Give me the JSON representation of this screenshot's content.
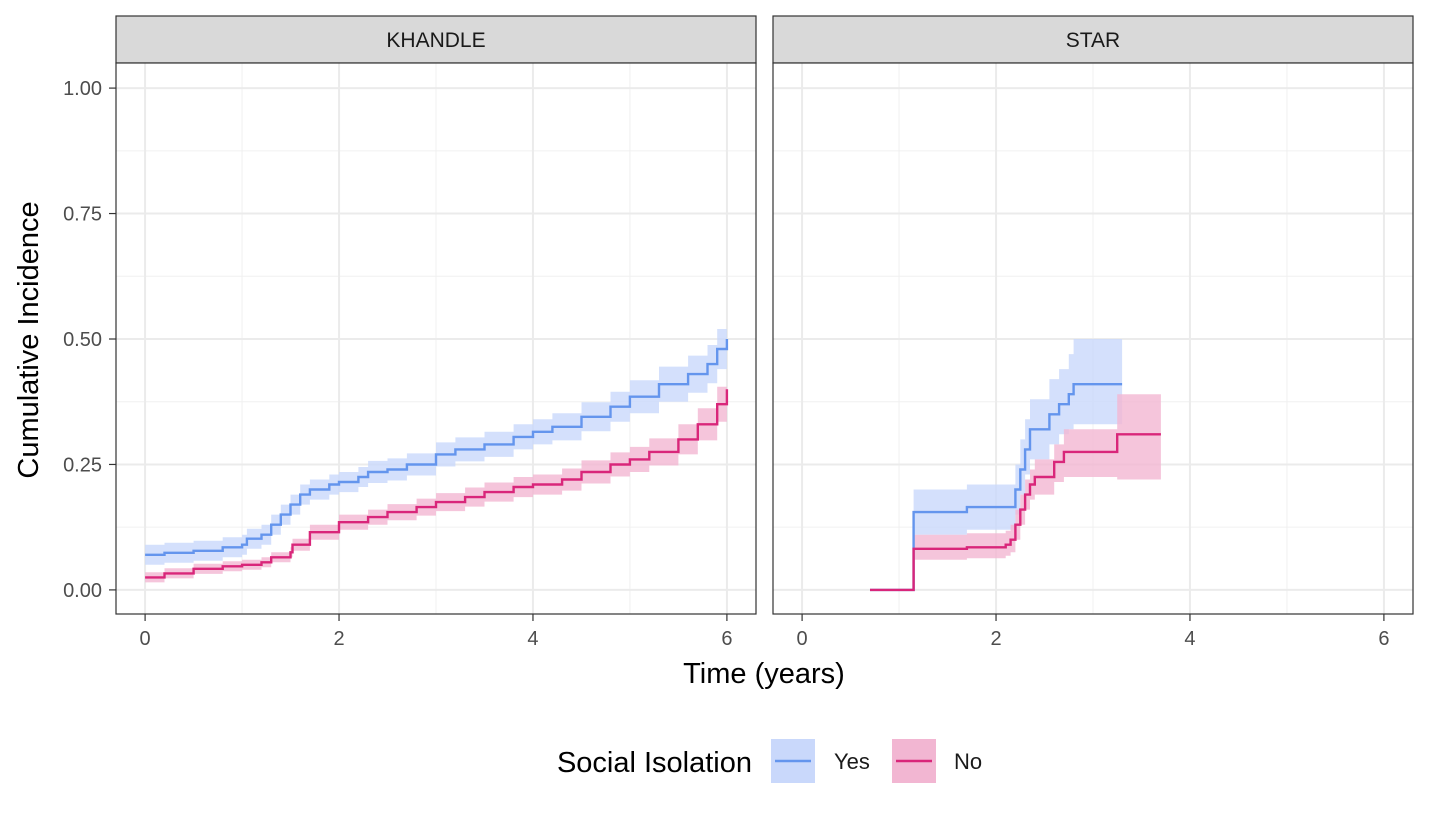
{
  "chart_data": {
    "type": "line",
    "xlabel": "Time (years)",
    "ylabel": "Cumulative Incidence",
    "xlim": [
      -0.3,
      6.3
    ],
    "ylim": [
      -0.048,
      1.05
    ],
    "x_ticks": [
      0,
      2,
      4,
      6
    ],
    "x_tick_labels": [
      "0",
      "2",
      "4",
      "6"
    ],
    "y_ticks": [
      0,
      0.25,
      0.5,
      0.75,
      1.0
    ],
    "y_tick_labels": [
      "0.00",
      "0.25",
      "0.50",
      "0.75",
      "1.00"
    ],
    "grid": true,
    "legend": {
      "title": "Social Isolation",
      "position": "bottom",
      "entries": [
        {
          "label": "Yes",
          "line_color": "#6495ED",
          "fill_color": "#c9d8fb"
        },
        {
          "label": "No",
          "line_color": "#D9267A",
          "fill_color": "#f2b6d2"
        }
      ]
    },
    "panels": [
      {
        "title": "KHANDLE",
        "series": [
          {
            "name": "Yes",
            "color": "#6495ED",
            "fill": "#c9d8fb",
            "x": [
              0,
              0.2,
              0.5,
              0.8,
              1.0,
              1.05,
              1.2,
              1.3,
              1.4,
              1.5,
              1.6,
              1.7,
              1.9,
              2.0,
              2.2,
              2.3,
              2.5,
              2.7,
              3.0,
              3.2,
              3.5,
              3.8,
              4.0,
              4.2,
              4.5,
              4.8,
              5.0,
              5.3,
              5.6,
              5.8,
              5.9,
              6.0
            ],
            "y": [
              0.07,
              0.074,
              0.078,
              0.085,
              0.09,
              0.102,
              0.11,
              0.13,
              0.15,
              0.17,
              0.19,
              0.2,
              0.21,
              0.215,
              0.225,
              0.235,
              0.24,
              0.25,
              0.27,
              0.28,
              0.29,
              0.305,
              0.315,
              0.325,
              0.345,
              0.365,
              0.385,
              0.41,
              0.43,
              0.45,
              0.48,
              0.5
            ],
            "lower": [
              0.05,
              0.054,
              0.058,
              0.065,
              0.07,
              0.082,
              0.09,
              0.11,
              0.13,
              0.15,
              0.17,
              0.18,
              0.19,
              0.195,
              0.205,
              0.213,
              0.218,
              0.228,
              0.246,
              0.256,
              0.265,
              0.28,
              0.29,
              0.298,
              0.316,
              0.335,
              0.352,
              0.375,
              0.393,
              0.412,
              0.44,
              0.455
            ],
            "upper": [
              0.09,
              0.094,
              0.098,
              0.105,
              0.11,
              0.122,
              0.13,
              0.15,
              0.17,
              0.19,
              0.21,
              0.22,
              0.23,
              0.235,
              0.245,
              0.257,
              0.262,
              0.272,
              0.294,
              0.304,
              0.315,
              0.33,
              0.34,
              0.352,
              0.374,
              0.395,
              0.418,
              0.445,
              0.467,
              0.488,
              0.52,
              0.555
            ]
          },
          {
            "name": "No",
            "color": "#D9267A",
            "fill": "#f2b6d2",
            "x": [
              0,
              0.2,
              0.5,
              0.8,
              1.0,
              1.2,
              1.3,
              1.5,
              1.52,
              1.7,
              2.0,
              2.3,
              2.5,
              2.8,
              3.0,
              3.3,
              3.5,
              3.8,
              4.0,
              4.3,
              4.5,
              4.8,
              5.0,
              5.2,
              5.5,
              5.7,
              5.9,
              6.0
            ],
            "y": [
              0.025,
              0.033,
              0.042,
              0.047,
              0.05,
              0.055,
              0.065,
              0.075,
              0.09,
              0.115,
              0.135,
              0.145,
              0.155,
              0.165,
              0.175,
              0.185,
              0.195,
              0.205,
              0.21,
              0.22,
              0.235,
              0.25,
              0.26,
              0.275,
              0.3,
              0.33,
              0.37,
              0.4
            ],
            "lower": [
              0.015,
              0.023,
              0.032,
              0.037,
              0.04,
              0.045,
              0.055,
              0.065,
              0.078,
              0.1,
              0.12,
              0.13,
              0.139,
              0.148,
              0.157,
              0.166,
              0.176,
              0.185,
              0.19,
              0.198,
              0.212,
              0.226,
              0.235,
              0.248,
              0.27,
              0.298,
              0.335,
              0.36
            ],
            "upper": [
              0.035,
              0.043,
              0.052,
              0.057,
              0.06,
              0.065,
              0.075,
              0.085,
              0.102,
              0.13,
              0.15,
              0.16,
              0.171,
              0.182,
              0.193,
              0.204,
              0.214,
              0.225,
              0.23,
              0.242,
              0.258,
              0.274,
              0.285,
              0.302,
              0.33,
              0.362,
              0.405,
              0.44
            ]
          }
        ]
      },
      {
        "title": "STAR",
        "series": [
          {
            "name": "Yes",
            "color": "#6495ED",
            "fill": "#c9d8fb",
            "x": [
              0.7,
              1.15,
              1.15,
              1.5,
              1.7,
              2.15,
              2.2,
              2.25,
              2.3,
              2.35,
              2.45,
              2.55,
              2.65,
              2.75,
              2.8,
              3.0,
              3.3
            ],
            "y": [
              0.0,
              0.0,
              0.155,
              0.155,
              0.165,
              0.165,
              0.2,
              0.24,
              0.28,
              0.32,
              0.32,
              0.35,
              0.37,
              0.39,
              0.41,
              0.41,
              0.41
            ],
            "lower": [
              0.0,
              0.0,
              0.11,
              0.11,
              0.12,
              0.12,
              0.15,
              0.19,
              0.23,
              0.26,
              0.26,
              0.29,
              0.31,
              0.32,
              0.33,
              0.33,
              0.33
            ],
            "upper": [
              0.0,
              0.0,
              0.2,
              0.2,
              0.21,
              0.21,
              0.25,
              0.3,
              0.34,
              0.38,
              0.38,
              0.42,
              0.44,
              0.47,
              0.5,
              0.5,
              0.5
            ]
          },
          {
            "name": "No",
            "color": "#D9267A",
            "fill": "#f2b6d2",
            "x": [
              0.7,
              1.15,
              1.15,
              1.5,
              1.7,
              2.1,
              2.15,
              2.2,
              2.25,
              2.3,
              2.35,
              2.4,
              2.5,
              2.6,
              2.7,
              3.0,
              3.25,
              3.25,
              3.7
            ],
            "y": [
              0.0,
              0.0,
              0.082,
              0.082,
              0.085,
              0.09,
              0.1,
              0.13,
              0.16,
              0.19,
              0.21,
              0.225,
              0.225,
              0.255,
              0.275,
              0.275,
              0.275,
              0.31,
              0.31
            ],
            "lower": [
              0.0,
              0.0,
              0.06,
              0.06,
              0.063,
              0.068,
              0.075,
              0.1,
              0.13,
              0.16,
              0.18,
              0.19,
              0.19,
              0.215,
              0.225,
              0.225,
              0.225,
              0.22,
              0.22
            ],
            "upper": [
              0.0,
              0.0,
              0.11,
              0.11,
              0.113,
              0.118,
              0.13,
              0.16,
              0.19,
              0.22,
              0.24,
              0.26,
              0.26,
              0.29,
              0.32,
              0.32,
              0.32,
              0.39,
              0.39
            ]
          }
        ]
      }
    ]
  }
}
